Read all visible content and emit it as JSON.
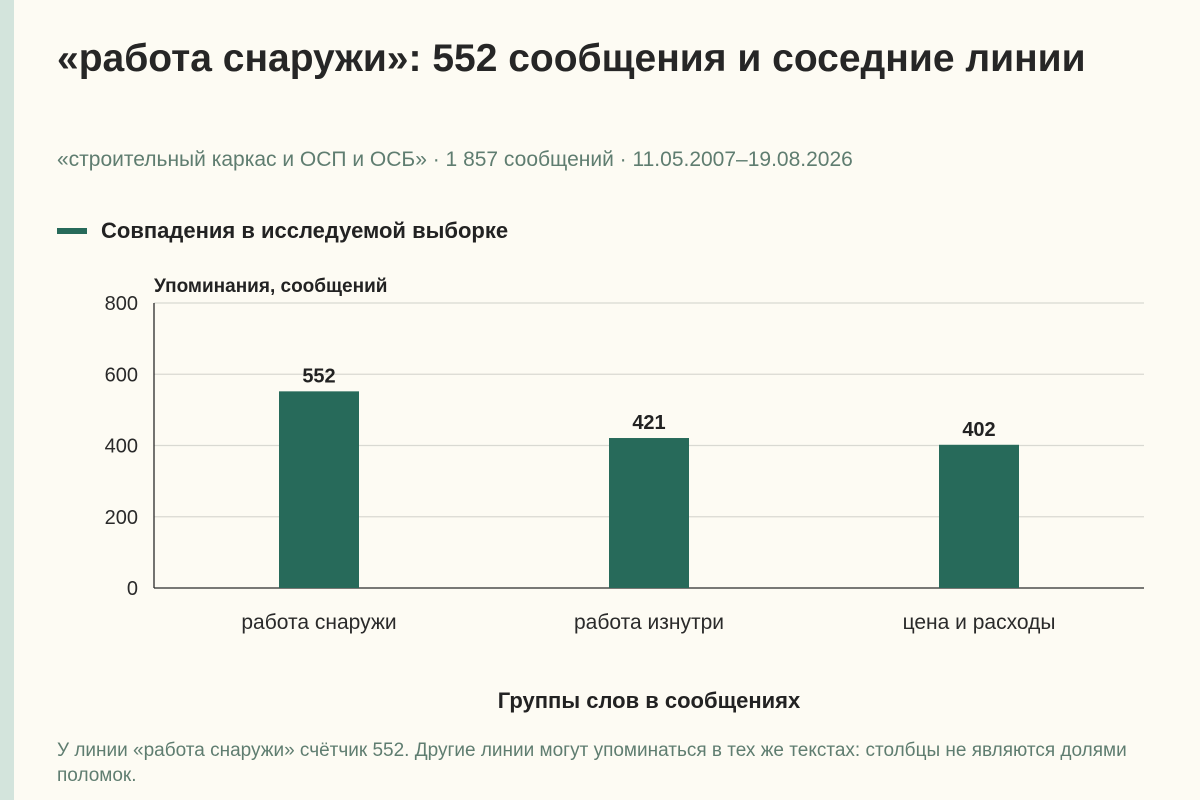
{
  "title": "«работа снаружи»: 552 сообщения и соседние линии",
  "subtitle": "«строительный каркас и ОСП и ОСБ» · 1 857 сообщений · 11.05.2007–19.08.2026",
  "caption": "У линии «работа снаружи» счётчик 552. Другие линии могут упоминаться в тех же текстах: столбцы не являются долями поломок.",
  "colors": {
    "bar": "#276a5a",
    "grid": "#d9d9d2",
    "axis": "#2a2a2a",
    "accent": "#d3e4dc"
  },
  "chart_data": {
    "type": "bar",
    "categories": [
      "работа снаружи",
      "работа изнутри",
      "цена и расходы"
    ],
    "series": [
      {
        "name": "Совпадения в исследуемой выборке",
        "values": [
          552,
          421,
          402
        ]
      }
    ],
    "value_labels": [
      "552",
      "421",
      "402"
    ],
    "ylabel": "Упоминания, сообщений",
    "xlabel": "Группы слов в сообщениях",
    "ylim": [
      0,
      800
    ],
    "yticks": [
      0,
      200,
      400,
      600,
      800
    ],
    "ytick_labels": [
      "0",
      "200",
      "400",
      "600",
      "800"
    ],
    "grid": true,
    "legend_position": "top-left"
  }
}
